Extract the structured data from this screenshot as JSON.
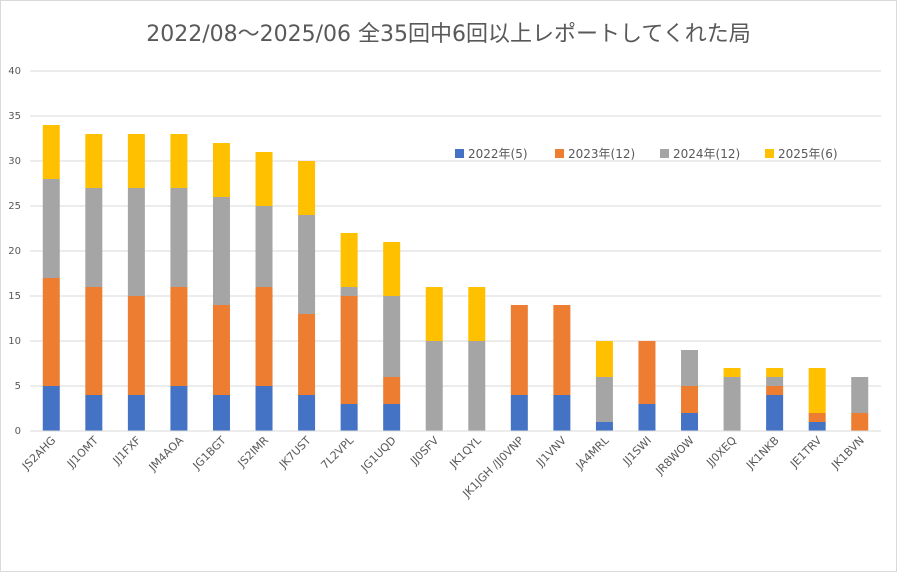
{
  "chart_data": {
    "type": "bar",
    "stacked": true,
    "title": "2022/08～2025/06 全35回中6回以上レポートしてくれた局",
    "xlabel": "",
    "ylabel": "",
    "ylim": [
      0,
      40
    ],
    "yticks": [
      0,
      5,
      10,
      15,
      20,
      25,
      30,
      35,
      40
    ],
    "grid": true,
    "legend_position": "top-right",
    "categories": [
      "JS2AHG",
      "JJ1OMT",
      "JJ1FXF",
      "JM4AOA",
      "JG1BGT",
      "JS2IMR",
      "JK7UST",
      "7L2VPL",
      "JG1UQD",
      "JJ0SFV",
      "JK1QYL",
      "JK1JGH /JJ0VNP",
      "JJ1VNV",
      "JA4MRL",
      "JJ1SWI",
      "JR8WOW",
      "JJ0XEQ",
      "JK1NKB",
      "JE1TRV",
      "JK1BVN"
    ],
    "series": [
      {
        "name": "2022年(5)",
        "color": "#4472C4",
        "values": [
          5,
          4,
          4,
          5,
          4,
          5,
          4,
          3,
          3,
          0,
          0,
          4,
          4,
          1,
          3,
          2,
          0,
          4,
          1,
          0
        ]
      },
      {
        "name": "2023年(12)",
        "color": "#ED7D31",
        "values": [
          12,
          12,
          11,
          11,
          10,
          11,
          9,
          12,
          3,
          0,
          0,
          10,
          10,
          0,
          7,
          3,
          0,
          1,
          1,
          2
        ]
      },
      {
        "name": "2024年(12)",
        "color": "#A5A5A5",
        "values": [
          11,
          11,
          12,
          11,
          12,
          9,
          11,
          1,
          9,
          10,
          10,
          0,
          0,
          5,
          0,
          4,
          6,
          1,
          0,
          4
        ]
      },
      {
        "name": "2025年(6)",
        "color": "#FFC000",
        "values": [
          6,
          6,
          6,
          6,
          6,
          6,
          6,
          6,
          6,
          6,
          6,
          0,
          0,
          4,
          0,
          0,
          1,
          1,
          5,
          0
        ]
      }
    ]
  }
}
